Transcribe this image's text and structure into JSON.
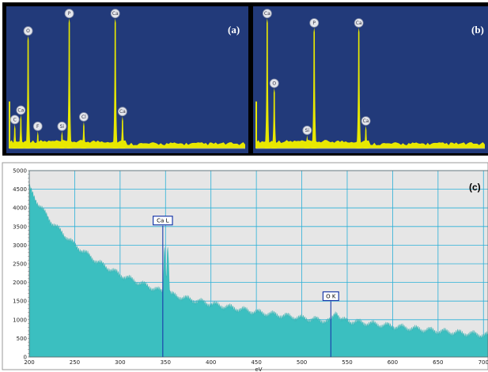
{
  "chart_data": [
    {
      "id": "panel-a",
      "type": "area",
      "panel_label": "(a)",
      "background": "#223a7a",
      "fill": "#e8e800",
      "peaks": [
        {
          "label": "C",
          "x": 0.035,
          "h": 0.18
        },
        {
          "label": "Ca",
          "x": 0.06,
          "h": 0.25
        },
        {
          "label": "O",
          "x": 0.09,
          "h": 0.84
        },
        {
          "label": "F",
          "x": 0.13,
          "h": 0.13
        },
        {
          "label": "Si",
          "x": 0.23,
          "h": 0.13
        },
        {
          "label": "P",
          "x": 0.26,
          "h": 0.97
        },
        {
          "label": "Cl",
          "x": 0.32,
          "h": 0.2
        },
        {
          "label": "Ca",
          "x": 0.45,
          "h": 0.97
        },
        {
          "label": "Ca",
          "x": 0.48,
          "h": 0.24
        }
      ]
    },
    {
      "id": "panel-b",
      "type": "area",
      "panel_label": "(b)",
      "background": "#223a7a",
      "fill": "#e8e800",
      "peaks": [
        {
          "label": "Ca",
          "x": 0.06,
          "h": 0.97
        },
        {
          "label": "O",
          "x": 0.09,
          "h": 0.45
        },
        {
          "label": "Si",
          "x": 0.23,
          "h": 0.1
        },
        {
          "label": "P",
          "x": 0.26,
          "h": 0.9
        },
        {
          "label": "Ca",
          "x": 0.45,
          "h": 0.9
        },
        {
          "label": "Ca",
          "x": 0.48,
          "h": 0.17
        }
      ]
    },
    {
      "id": "panel-c",
      "type": "area",
      "panel_label": "(c)",
      "xlabel": "eV",
      "xlim": [
        200,
        705
      ],
      "ylim": [
        0,
        5000
      ],
      "x_ticks": [
        "200",
        "250",
        "300",
        "350",
        "400",
        "450",
        "500",
        "550",
        "600",
        "650",
        "700"
      ],
      "y_ticks": [
        "0",
        "500",
        "1000",
        "1500",
        "2000",
        "2500",
        "3000",
        "3500",
        "4000",
        "4500",
        "5000"
      ],
      "grid": true,
      "plot_bg": "#e6e6e6",
      "fill": "#3bbfc0",
      "baseline": [
        [
          200,
          4550
        ],
        [
          210,
          4100
        ],
        [
          225,
          3600
        ],
        [
          250,
          3000
        ],
        [
          275,
          2550
        ],
        [
          300,
          2200
        ],
        [
          325,
          1950
        ],
        [
          345,
          1760
        ],
        [
          352,
          1700
        ],
        [
          375,
          1550
        ],
        [
          400,
          1420
        ],
        [
          450,
          1200
        ],
        [
          500,
          1040
        ],
        [
          530,
          960
        ],
        [
          535,
          1000
        ],
        [
          545,
          980
        ],
        [
          600,
          820
        ],
        [
          650,
          690
        ],
        [
          705,
          580
        ]
      ],
      "edges": [
        {
          "label": "Ca L",
          "x": 347,
          "peak_y": 3050
        },
        {
          "label": "O K",
          "x": 532,
          "peak_y": 1150
        }
      ]
    }
  ]
}
